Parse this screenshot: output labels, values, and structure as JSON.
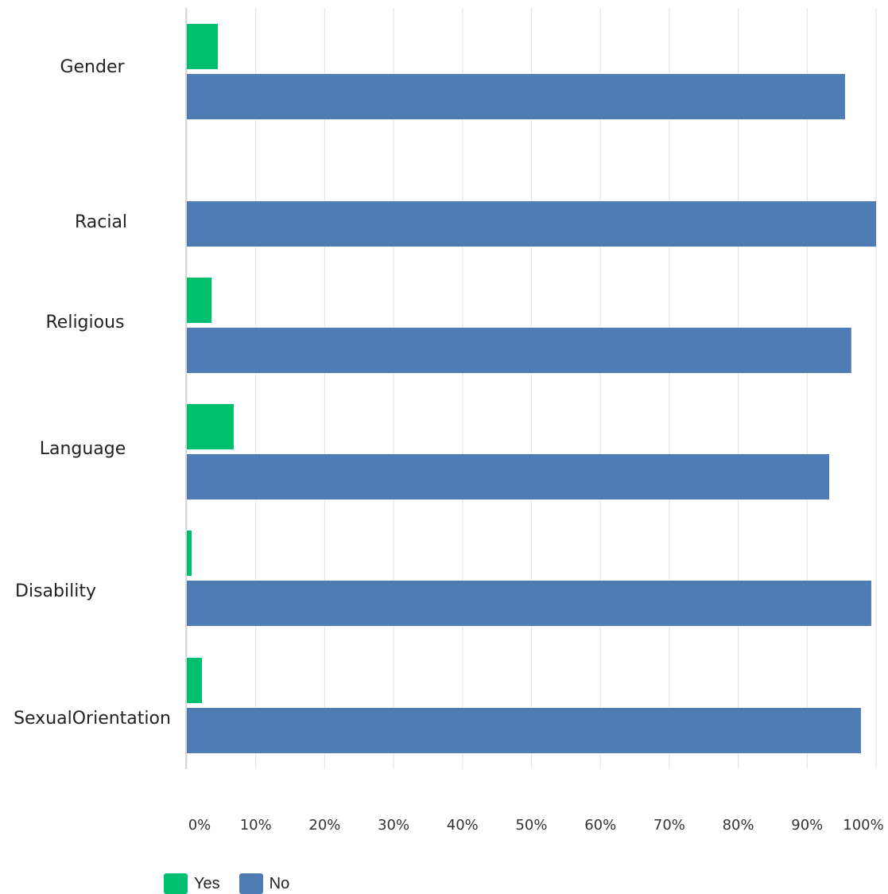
{
  "chart_data": {
    "type": "bar",
    "orientation": "horizontal",
    "categories": [
      "Gender",
      "Racial",
      "Religious",
      "Language",
      "Disability",
      "SexualOrientation"
    ],
    "series": [
      {
        "name": "Yes",
        "color": "#00BF6F",
        "values": [
          4.5,
          0,
          3.6,
          6.8,
          0.7,
          2.2
        ]
      },
      {
        "name": "No",
        "color": "#507CB6",
        "values": [
          95.5,
          100,
          96.4,
          93.2,
          99.3,
          97.8
        ]
      }
    ],
    "x_ticks": [
      "0%",
      "10%",
      "20%",
      "30%",
      "40%",
      "50%",
      "60%",
      "70%",
      "80%",
      "90%",
      "100%"
    ],
    "xlim": [
      0,
      100
    ],
    "grid": "vertical",
    "legend_position": "bottom-left"
  }
}
